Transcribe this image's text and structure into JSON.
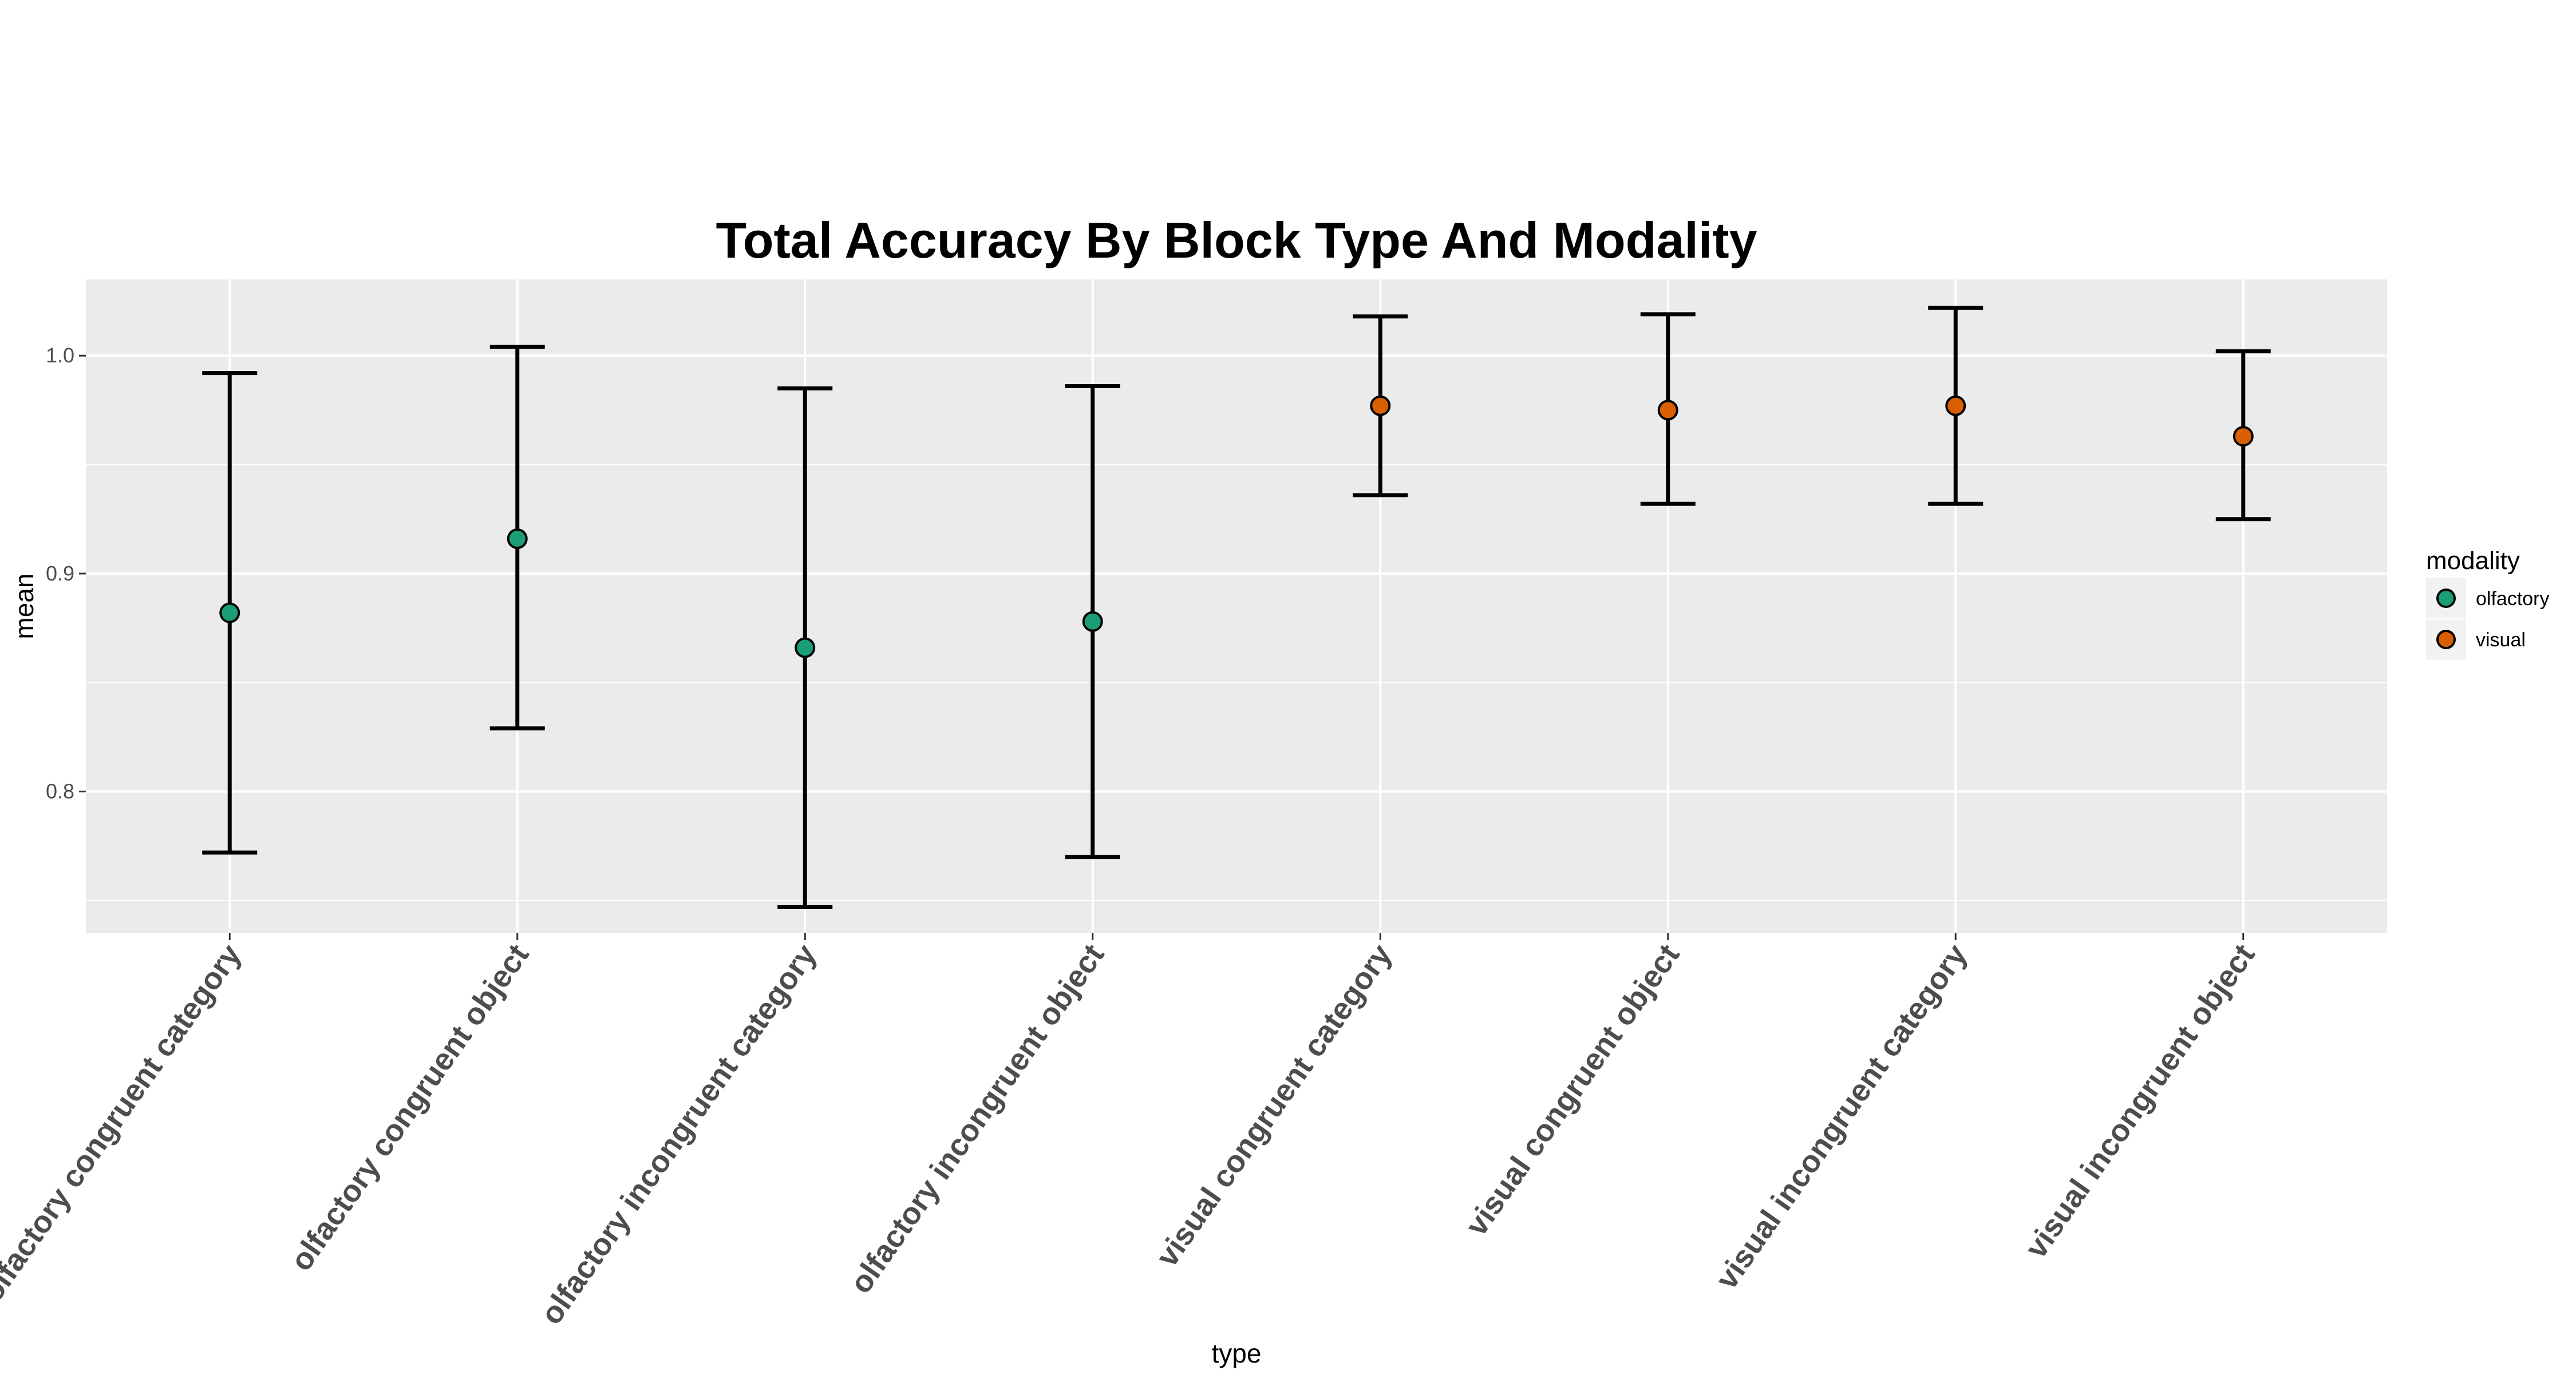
{
  "chart_data": {
    "type": "scatter",
    "title": "Total Accuracy By Block Type And Modality",
    "xlabel": "type",
    "ylabel": "mean",
    "categories": [
      "olfactory congruent category",
      "olfactory congruent object",
      "olfactory incongruent category",
      "olfactory incongruent object",
      "visual congruent category",
      "visual congruent object",
      "visual incongruent category",
      "visual incongruent object"
    ],
    "ylim": [
      0.735,
      1.035
    ],
    "yticks": [
      0.8,
      0.9,
      1.0
    ],
    "ytick_labels": [
      "0.8",
      "0.9",
      "1.0"
    ],
    "grid": true,
    "background": "#ebebeb",
    "legend": {
      "title": "modality",
      "position": "right",
      "entries": [
        {
          "label": "olfactory",
          "color": "#1b9e77"
        },
        {
          "label": "visual",
          "color": "#d95f02"
        }
      ]
    },
    "series": [
      {
        "name": "olfactory",
        "color": "#1b9e77",
        "points": [
          {
            "category": "olfactory congruent category",
            "mean": 0.882,
            "lower": 0.772,
            "upper": 0.992
          },
          {
            "category": "olfactory congruent object",
            "mean": 0.916,
            "lower": 0.829,
            "upper": 1.004
          },
          {
            "category": "olfactory incongruent category",
            "mean": 0.866,
            "lower": 0.747,
            "upper": 0.985
          },
          {
            "category": "olfactory incongruent object",
            "mean": 0.878,
            "lower": 0.77,
            "upper": 0.986
          }
        ]
      },
      {
        "name": "visual",
        "color": "#d95f02",
        "points": [
          {
            "category": "visual congruent category",
            "mean": 0.977,
            "lower": 0.936,
            "upper": 1.018
          },
          {
            "category": "visual congruent object",
            "mean": 0.975,
            "lower": 0.932,
            "upper": 1.019
          },
          {
            "category": "visual incongruent category",
            "mean": 0.977,
            "lower": 0.932,
            "upper": 1.022
          },
          {
            "category": "visual incongruent object",
            "mean": 0.963,
            "lower": 0.925,
            "upper": 1.002
          }
        ]
      }
    ]
  }
}
